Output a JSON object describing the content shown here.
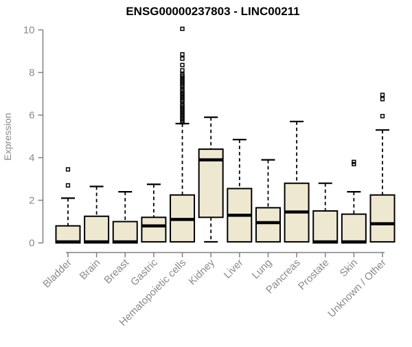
{
  "title": "ENSG00000237803 - LINC00211",
  "colors": {
    "background": "#ffffff",
    "box_fill": "#EEE8D1",
    "box_border": "#000000",
    "median": "#000000",
    "whisker": "#000000",
    "outlier": "#000000",
    "axis_line": "#7f7f7f",
    "axis_text": "#8a8a8a",
    "title_text": "#000000"
  },
  "chart_data": {
    "type": "boxplot",
    "title": "ENSG00000237803 - LINC00211",
    "xlabel": "",
    "ylabel": "Expression",
    "ylim": [
      0,
      10
    ],
    "yticks": [
      0,
      2,
      4,
      6,
      8,
      10
    ],
    "ytick_labels": [
      "0",
      "2",
      "4",
      "6",
      "8",
      "10"
    ],
    "grid": false,
    "legend": "none",
    "categories": [
      "Bladder",
      "Brain",
      "Breast",
      "Gastric",
      "Hematopoietic cells",
      "Kidney",
      "Liver",
      "Lung",
      "Pancreas",
      "Prostate",
      "Skin",
      "Unknown / Other"
    ],
    "series": [
      {
        "name": "Bladder",
        "q1": 0,
        "median": 0.05,
        "q3": 0.8,
        "whisker_low": 0,
        "whisker_high": 2.1,
        "outliers": [
          3.45,
          2.7
        ]
      },
      {
        "name": "Brain",
        "q1": 0,
        "median": 0.05,
        "q3": 1.25,
        "whisker_low": 0,
        "whisker_high": 2.65,
        "outliers": []
      },
      {
        "name": "Breast",
        "q1": 0,
        "median": 0.05,
        "q3": 1.0,
        "whisker_low": 0,
        "whisker_high": 2.4,
        "outliers": []
      },
      {
        "name": "Gastric",
        "q1": 0.05,
        "median": 0.8,
        "q3": 1.2,
        "whisker_low": 0.05,
        "whisker_high": 2.75,
        "outliers": []
      },
      {
        "name": "Hematopoietic cells",
        "q1": 0.05,
        "median": 1.1,
        "q3": 2.25,
        "whisker_low": 0.05,
        "whisker_high": 5.6,
        "outliers": [
          10.05,
          8.85,
          8.65,
          8.35,
          8.1,
          7.9,
          7.83,
          7.76,
          7.69,
          7.62,
          7.55,
          7.48,
          7.41,
          7.34,
          7.2,
          7.13,
          7.06,
          6.99,
          6.92,
          6.85,
          6.78,
          6.71,
          6.64,
          6.5,
          6.43,
          6.36,
          6.29,
          6.22,
          6.15,
          6.08,
          6.01,
          5.94,
          5.87,
          5.8,
          5.73,
          5.66
        ]
      },
      {
        "name": "Kidney",
        "q1": 1.2,
        "median": 3.9,
        "q3": 4.4,
        "whisker_low": 0.05,
        "whisker_high": 5.9,
        "outliers": []
      },
      {
        "name": "Liver",
        "q1": 0.05,
        "median": 1.3,
        "q3": 2.55,
        "whisker_low": 0.05,
        "whisker_high": 4.85,
        "outliers": []
      },
      {
        "name": "Lung",
        "q1": 0.05,
        "median": 0.95,
        "q3": 1.65,
        "whisker_low": 0.05,
        "whisker_high": 3.9,
        "outliers": []
      },
      {
        "name": "Pancreas",
        "q1": 0.05,
        "median": 1.45,
        "q3": 2.8,
        "whisker_low": 0.05,
        "whisker_high": 5.7,
        "outliers": []
      },
      {
        "name": "Prostate",
        "q1": 0,
        "median": 0.05,
        "q3": 1.5,
        "whisker_low": 0,
        "whisker_high": 2.8,
        "outliers": []
      },
      {
        "name": "Skin",
        "q1": 0,
        "median": 0.05,
        "q3": 1.35,
        "whisker_low": 0,
        "whisker_high": 2.4,
        "outliers": [
          3.8,
          3.7
        ]
      },
      {
        "name": "Unknown / Other",
        "q1": 0.05,
        "median": 0.9,
        "q3": 2.25,
        "whisker_low": 0.05,
        "whisker_high": 5.3,
        "outliers": [
          6.95,
          6.75,
          5.95
        ]
      }
    ]
  }
}
